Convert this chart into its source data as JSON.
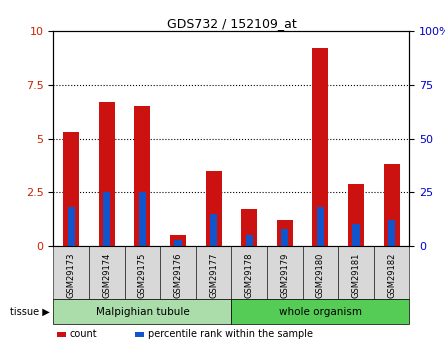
{
  "title": "GDS732 / 152109_at",
  "samples": [
    "GSM29173",
    "GSM29174",
    "GSM29175",
    "GSM29176",
    "GSM29177",
    "GSM29178",
    "GSM29179",
    "GSM29180",
    "GSM29181",
    "GSM29182"
  ],
  "count_values": [
    5.3,
    6.7,
    6.5,
    0.5,
    3.5,
    1.7,
    1.2,
    9.2,
    2.9,
    3.8
  ],
  "percentile_values": [
    18,
    25,
    25,
    3,
    15,
    5,
    8,
    18,
    10,
    12
  ],
  "left_ylim": [
    0,
    10
  ],
  "right_ylim": [
    0,
    100
  ],
  "left_yticks": [
    0,
    2.5,
    5,
    7.5,
    10
  ],
  "right_yticks": [
    0,
    25,
    50,
    75,
    100
  ],
  "right_yticklabels": [
    "0",
    "25",
    "50",
    "75",
    "100%"
  ],
  "bar_color": "#cc1111",
  "percentile_color": "#1155cc",
  "plot_bg": "#ffffff",
  "tissue_groups": [
    {
      "label": "Malpighian tubule",
      "indices": [
        0,
        1,
        2,
        3,
        4
      ],
      "color": "#aaddaa"
    },
    {
      "label": "whole organism",
      "indices": [
        5,
        6,
        7,
        8,
        9
      ],
      "color": "#55cc55"
    }
  ],
  "legend_items": [
    {
      "label": "count",
      "color": "#cc1111"
    },
    {
      "label": "percentile rank within the sample",
      "color": "#1155cc"
    }
  ],
  "tick_label_color_left": "#cc2200",
  "tick_label_color_right": "#0000cc",
  "bar_width": 0.45,
  "percentile_bar_width": 0.2
}
